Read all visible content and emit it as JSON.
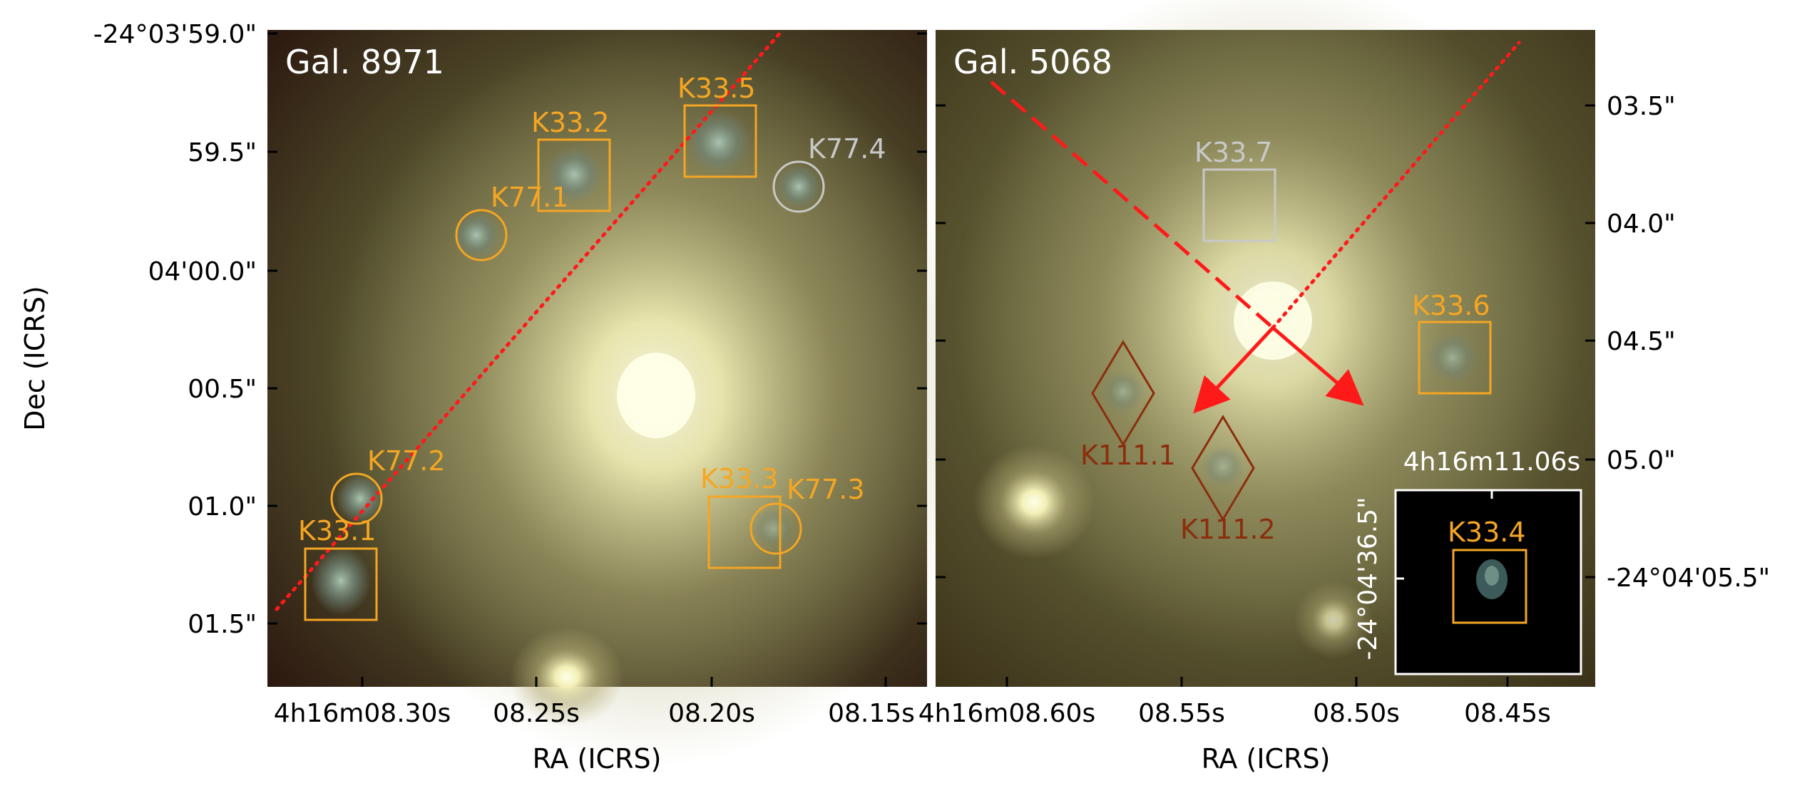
{
  "panels": {
    "left": {
      "title": "Gal. 8971",
      "xlabel": "RA (ICRS)",
      "ylabel": "Dec (ICRS)",
      "dec_ticks": [
        "-24°03'59.0\"",
        "59.5\"",
        "04'00.0\"",
        "00.5\"",
        "01.0\"",
        "01.5\""
      ],
      "ra_ticks": [
        "4h16m08.30s",
        "08.25s",
        "08.20s",
        "08.15s"
      ],
      "markers": [
        "K33.1",
        "K33.2",
        "K33.3",
        "K33.5",
        "K77.1",
        "K77.2",
        "K77.3",
        "K77.4"
      ]
    },
    "right": {
      "title": "Gal. 5068",
      "xlabel": "RA (ICRS)",
      "dec_ticks": [
        "03.5\"",
        "04.0\"",
        "04.5\"",
        "05.0\"",
        "-24°04'05.5\""
      ],
      "ra_ticks": [
        "4h16m08.60s",
        "08.55s",
        "08.50s",
        "08.45s"
      ],
      "markers": [
        "K33.6",
        "K33.7",
        "K111.1",
        "K111.2"
      ]
    },
    "inset": {
      "ra_label": "4h16m11.06s",
      "dec_label": "-24°04'36.5\"",
      "marker": "K33.4"
    }
  },
  "colors": {
    "orange": "#f5a623",
    "grey": "#c8c8c8",
    "brown": "#8b2e0c",
    "red": "#ff1a1a"
  }
}
